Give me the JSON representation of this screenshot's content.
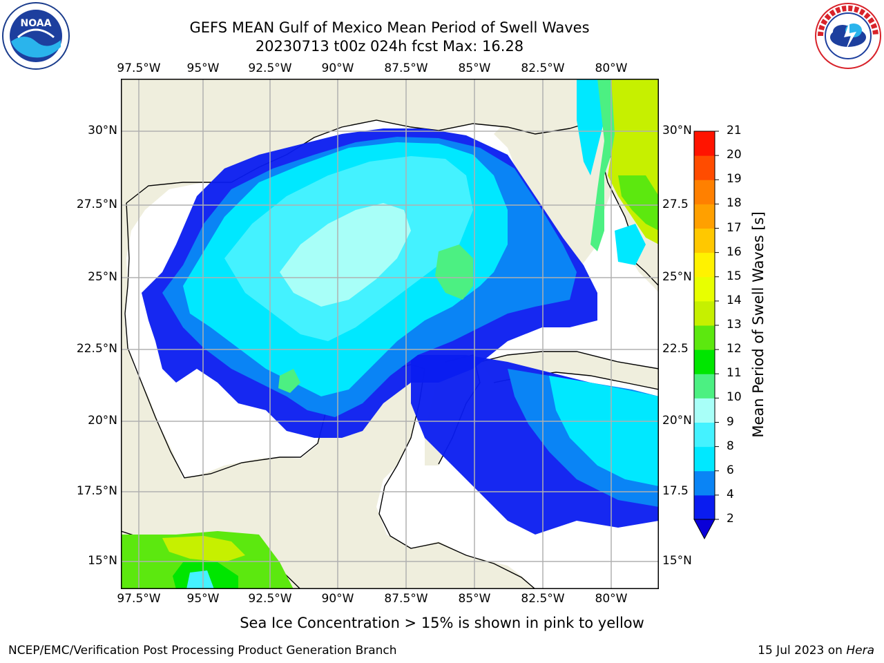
{
  "header": {
    "title_line1": "GEFS MEAN Gulf of Mexico Mean Period of Swell Waves",
    "title_line2": "20230713 t00z 024h fcst   Max: 16.28"
  },
  "logos": {
    "left": {
      "name": "noaa-logo",
      "text": "NOAA"
    },
    "right": {
      "name": "nws-logo",
      "text": "NATIONAL WEATHER SERVICE"
    }
  },
  "map": {
    "longitudes": [
      "97.5°W",
      "95°W",
      "92.5°W",
      "90°W",
      "87.5°W",
      "85°W",
      "82.5°W",
      "80°W"
    ],
    "latitudes": [
      "30°N",
      "27.5°N",
      "25°N",
      "22.5°N",
      "20°N",
      "17.5°N",
      "15°N"
    ],
    "latitudes_right": [
      "30°N",
      "27.5",
      "25°N",
      "22.5",
      "20°N",
      "17.5",
      "15°N"
    ],
    "colors": {
      "land": "#efeedd",
      "ocean_no_data": "#ffffff",
      "grid": "#b0b0b0"
    }
  },
  "colorbar": {
    "title": "Mean Period of Swell Waves [s]",
    "ticks": [
      "2",
      "4",
      "6",
      "8",
      "9",
      "10",
      "11",
      "12",
      "13",
      "14",
      "15",
      "16",
      "17",
      "18",
      "19",
      "20",
      "21"
    ],
    "colors": [
      "#0a1cf0",
      "#0a84f5",
      "#00e8ff",
      "#44f2ff",
      "#a8fff8",
      "#4cf082",
      "#00e600",
      "#5ce80f",
      "#c6f000",
      "#e8ff00",
      "#fff200",
      "#ffc800",
      "#ffa000",
      "#ff8000",
      "#ff4c00",
      "#ff1400"
    ],
    "extend_color": "#0a00d8"
  },
  "footer": {
    "note": "Sea Ice Concentration > 15% is shown in pink to yellow",
    "left": "NCEP/EMC/Verification Post Processing Product Generation Branch",
    "right_date": "15 Jul 2023 on ",
    "right_host": "Hera"
  }
}
